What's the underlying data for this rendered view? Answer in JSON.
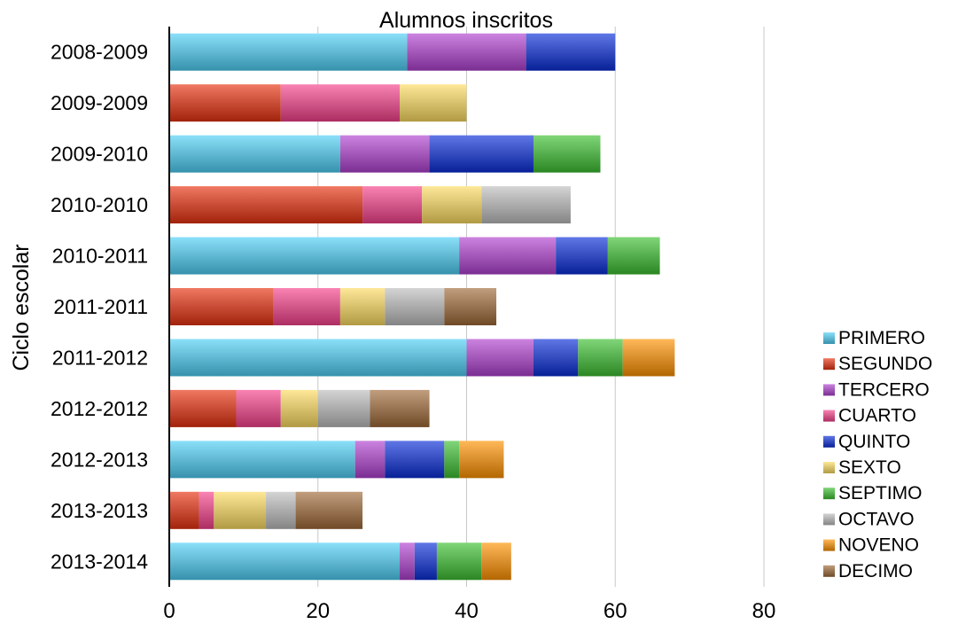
{
  "chart_data": {
    "type": "bar",
    "orientation": "horizontal",
    "stacked": true,
    "title": "Alumnos inscritos",
    "xlabel": "",
    "ylabel": "Ciclo escolar",
    "xlim": [
      0,
      100
    ],
    "xticks": [
      0,
      20,
      40,
      60,
      80
    ],
    "grid": true,
    "legend_position": "right",
    "categories": [
      "2008-2009",
      "2009-2009",
      "2009-2010",
      "2010-2010",
      "2010-2011",
      "2011-2011",
      "2011-2012",
      "2012-2012",
      "2012-2013",
      "2013-2013",
      "2013-2014"
    ],
    "series": [
      {
        "name": "PRIMERO",
        "color": "#4DCFF5",
        "values": [
          32,
          0,
          23,
          0,
          39,
          0,
          40,
          0,
          25,
          0,
          31
        ]
      },
      {
        "name": "SEGUNDO",
        "color": "#E8300E",
        "values": [
          0,
          15,
          0,
          26,
          0,
          14,
          0,
          9,
          0,
          4,
          0
        ]
      },
      {
        "name": "TERCERO",
        "color": "#B040D0",
        "values": [
          16,
          0,
          12,
          0,
          13,
          0,
          9,
          0,
          4,
          0,
          2
        ]
      },
      {
        "name": "CUARTO",
        "color": "#F5408A",
        "values": [
          0,
          16,
          0,
          8,
          0,
          9,
          0,
          6,
          0,
          2,
          0
        ]
      },
      {
        "name": "QUINTO",
        "color": "#0A2ED8",
        "values": [
          12,
          0,
          14,
          0,
          7,
          0,
          6,
          0,
          8,
          0,
          3
        ]
      },
      {
        "name": "SEXTO",
        "color": "#FDDC60",
        "values": [
          0,
          9,
          0,
          8,
          0,
          6,
          0,
          5,
          0,
          7,
          0
        ]
      },
      {
        "name": "SEPTIMO",
        "color": "#3CC030",
        "values": [
          0,
          0,
          9,
          0,
          7,
          0,
          6,
          0,
          2,
          0,
          6
        ]
      },
      {
        "name": "OCTAVO",
        "color": "#BDBDBD",
        "values": [
          0,
          0,
          0,
          12,
          0,
          8,
          0,
          7,
          0,
          4,
          0
        ]
      },
      {
        "name": "NOVENO",
        "color": "#FF9200",
        "values": [
          0,
          0,
          0,
          0,
          0,
          0,
          7,
          0,
          6,
          0,
          4
        ]
      },
      {
        "name": "DECIMO",
        "color": "#A06A38",
        "values": [
          0,
          0,
          0,
          0,
          0,
          7,
          0,
          8,
          0,
          9,
          0
        ]
      }
    ]
  }
}
